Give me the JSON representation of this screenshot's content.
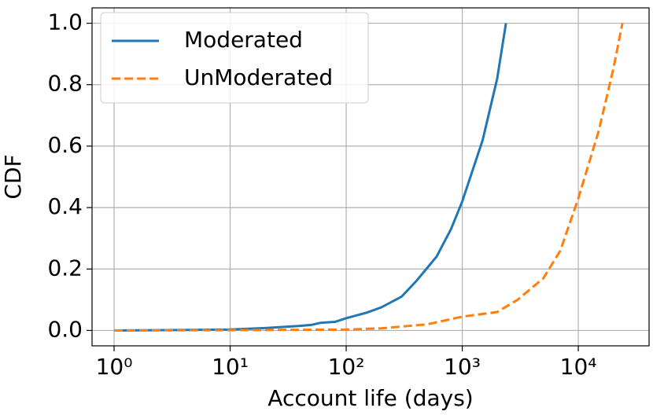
{
  "chart_data": {
    "type": "line",
    "x_label": "Account life (days)",
    "y_label": "CDF",
    "x_scale": "log",
    "grid": true,
    "legend": "upper left",
    "xlim": [
      0.646,
      40700
    ],
    "ylim": [
      -0.05,
      1.05
    ],
    "xticks": [
      {
        "value": 1,
        "label": "10⁰"
      },
      {
        "value": 10,
        "label": "10¹"
      },
      {
        "value": 100,
        "label": "10²"
      },
      {
        "value": 1000,
        "label": "10³"
      },
      {
        "value": 10000,
        "label": "10⁴"
      }
    ],
    "yticks": [
      {
        "value": 0,
        "label": "0.0"
      },
      0.2,
      0.4,
      0.6,
      0.8,
      {
        "value": 1,
        "label": "1.0"
      }
    ],
    "series": [
      {
        "name": "Moderated",
        "color": "#1f77b4",
        "dash": "solid",
        "x": [
          1,
          10,
          20,
          40,
          50,
          60,
          80,
          100,
          150,
          200,
          300,
          400,
          600,
          800,
          1000,
          1500,
          2000,
          2380
        ],
        "values": [
          0,
          0.003,
          0.008,
          0.015,
          0.018,
          0.025,
          0.028,
          0.04,
          0.058,
          0.075,
          0.11,
          0.16,
          0.24,
          0.33,
          0.42,
          0.62,
          0.82,
          1.0
        ]
      },
      {
        "name": "UnModerated",
        "color": "#ff7f0e",
        "dash": "dashed",
        "x": [
          1,
          10,
          100,
          200,
          500,
          1000,
          2000,
          3000,
          5000,
          7000,
          10000,
          15000,
          20000,
          24000
        ],
        "values": [
          0,
          0.001,
          0.003,
          0.007,
          0.02,
          0.045,
          0.06,
          0.1,
          0.17,
          0.26,
          0.43,
          0.65,
          0.85,
          1.0
        ]
      }
    ]
  }
}
